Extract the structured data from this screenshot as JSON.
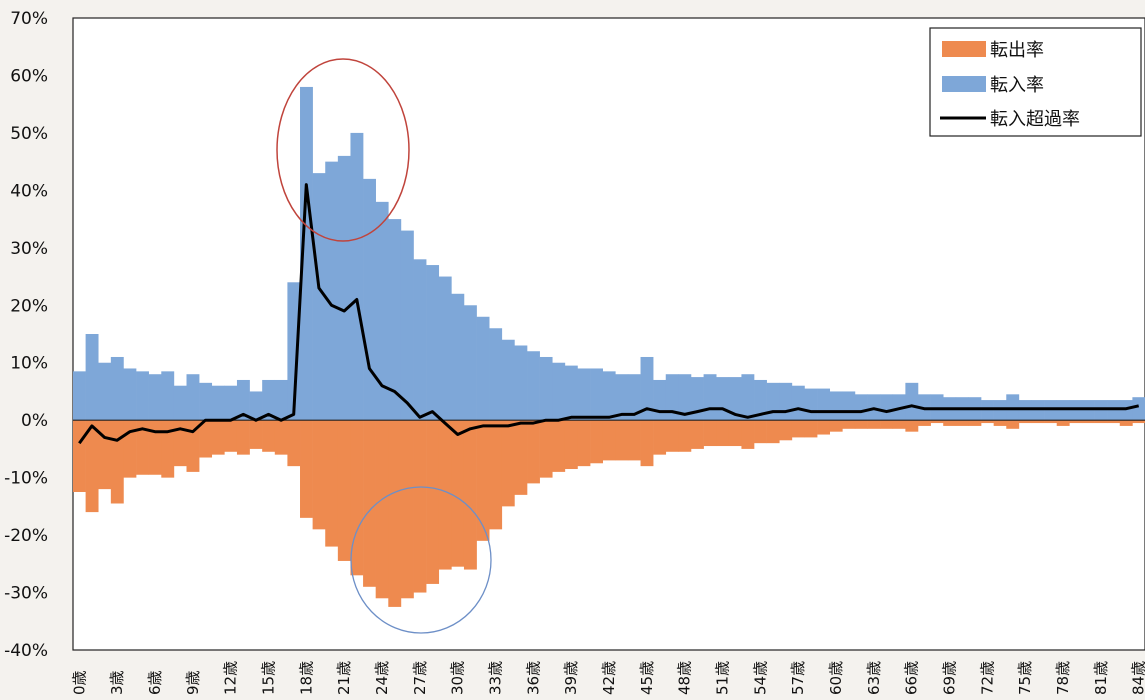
{
  "chart_data": {
    "type": "bar",
    "title": "",
    "xlabel": "",
    "ylabel": "",
    "ylim": [
      -40,
      70
    ],
    "yticks": [
      {
        "value": 70,
        "label": "70%"
      },
      {
        "value": 60,
        "label": "60%"
      },
      {
        "value": 50,
        "label": "50%"
      },
      {
        "value": 40,
        "label": "40%"
      },
      {
        "value": 30,
        "label": "30%"
      },
      {
        "value": 20,
        "label": "20%"
      },
      {
        "value": 10,
        "label": "10%"
      },
      {
        "value": 0,
        "label": "0%"
      },
      {
        "value": -10,
        "label": "-10%"
      },
      {
        "value": -20,
        "label": "-20%"
      },
      {
        "value": -30,
        "label": "-30%"
      },
      {
        "value": -40,
        "label": "-40%"
      }
    ],
    "x": [
      0,
      1,
      2,
      3,
      4,
      5,
      6,
      7,
      8,
      9,
      10,
      11,
      12,
      13,
      14,
      15,
      16,
      17,
      18,
      19,
      20,
      21,
      22,
      23,
      24,
      25,
      26,
      27,
      28,
      29,
      30,
      31,
      32,
      33,
      34,
      35,
      36,
      37,
      38,
      39,
      40,
      41,
      42,
      43,
      44,
      45,
      46,
      47,
      48,
      49,
      50,
      51,
      52,
      53,
      54,
      55,
      56,
      57,
      58,
      59,
      60,
      61,
      62,
      63,
      64,
      65,
      66,
      67,
      68,
      69,
      70,
      71,
      72,
      73,
      74,
      75,
      76,
      77,
      78,
      79,
      80,
      81,
      82,
      83,
      84
    ],
    "xtick_labels": [
      "0歳",
      "3歳",
      "6歳",
      "9歳",
      "12歳",
      "15歳",
      "18歳",
      "21歳",
      "24歳",
      "27歳",
      "30歳",
      "33歳",
      "36歳",
      "39歳",
      "42歳",
      "45歳",
      "48歳",
      "51歳",
      "54歳",
      "57歳",
      "60歳",
      "63歳",
      "66歳",
      "69歳",
      "72歳",
      "75歳",
      "78歳",
      "81歳",
      "84歳"
    ],
    "legend_position": "top-right",
    "legend": [
      {
        "label": "転出率",
        "color": "#ee8a4f",
        "kind": "bar"
      },
      {
        "label": "転入率",
        "color": "#7ea7d8",
        "kind": "bar"
      },
      {
        "label": "転入超過率",
        "color": "#000000",
        "kind": "line"
      }
    ],
    "series": [
      {
        "name": "転入率",
        "type": "bar",
        "color": "#7ea7d8",
        "values": [
          8.5,
          15,
          10,
          11,
          9,
          8.5,
          8,
          8.5,
          6,
          8,
          6.5,
          6,
          6,
          7,
          5,
          7,
          7,
          24,
          58,
          43,
          45,
          46,
          50,
          42,
          38,
          35,
          33,
          28,
          27,
          25,
          22,
          20,
          18,
          16,
          14,
          13,
          12,
          11,
          10,
          9.5,
          9,
          9,
          8.5,
          8,
          8,
          11,
          7,
          8,
          8,
          7.5,
          8,
          7.5,
          7.5,
          8,
          7,
          6.5,
          6.5,
          6,
          5.5,
          5.5,
          5,
          5,
          4.5,
          4.5,
          4.5,
          4.5,
          6.5,
          4.5,
          4.5,
          4,
          4,
          4,
          3.5,
          3.5,
          4.5,
          3.5,
          3.5,
          3.5,
          3.5,
          3.5,
          3.5,
          3.5,
          3.5,
          3.5,
          4
        ]
      },
      {
        "name": "転出率",
        "type": "bar",
        "color": "#ee8a4f",
        "values": [
          -12.5,
          -16,
          -12,
          -14.5,
          -10,
          -9.5,
          -9.5,
          -10,
          -8,
          -9,
          -6.5,
          -6,
          -5.5,
          -6,
          -5,
          -5.5,
          -6,
          -8,
          -17,
          -19,
          -22,
          -24.5,
          -27,
          -29,
          -31,
          -32.5,
          -31,
          -30,
          -28.5,
          -26,
          -25.5,
          -26,
          -21,
          -19,
          -15,
          -13,
          -11,
          -10,
          -9,
          -8.5,
          -8,
          -7.5,
          -7,
          -7,
          -7,
          -8,
          -6,
          -5.5,
          -5.5,
          -5,
          -4.5,
          -4.5,
          -4.5,
          -5,
          -4,
          -4,
          -3.5,
          -3,
          -3,
          -2.5,
          -2,
          -1.5,
          -1.5,
          -1.5,
          -1.5,
          -1.5,
          -2,
          -1,
          -0.5,
          -1,
          -1,
          -1,
          -0.5,
          -1,
          -1.5,
          -0.5,
          -0.5,
          -0.5,
          -1,
          -0.5,
          -0.5,
          -0.5,
          -0.5,
          -1,
          -0.5
        ]
      },
      {
        "name": "転入超過率",
        "type": "line",
        "color": "#000000",
        "values": [
          -4,
          -1,
          -3,
          -3.5,
          -2,
          -1.5,
          -2,
          -2,
          -1.5,
          -2,
          0,
          0,
          0,
          1,
          0,
          1,
          0,
          1,
          41,
          23,
          20,
          19,
          21,
          9,
          6,
          5,
          3,
          0.5,
          1.5,
          -0.5,
          -2.5,
          -1.5,
          -1,
          -1,
          -1,
          -0.5,
          -0.5,
          0,
          0,
          0.5,
          0.5,
          0.5,
          0.5,
          1,
          1,
          2,
          1.5,
          1.5,
          1,
          1.5,
          2,
          2,
          1,
          0.5,
          1,
          1.5,
          1.5,
          2,
          1.5,
          1.5,
          1.5,
          1.5,
          1.5,
          2,
          1.5,
          2,
          2.5,
          2,
          2,
          2,
          2,
          2,
          2,
          2,
          2,
          2,
          2,
          2,
          2,
          2,
          2,
          2,
          2,
          2,
          2.5
        ]
      }
    ]
  }
}
